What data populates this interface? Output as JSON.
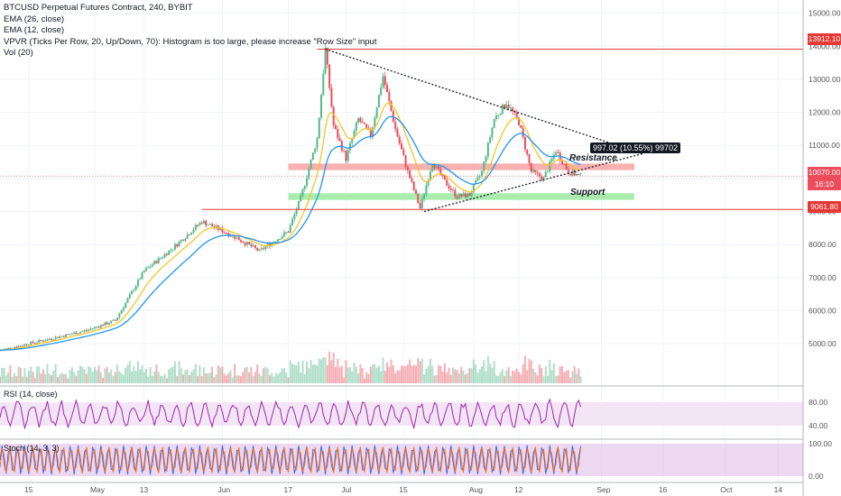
{
  "header": {
    "symbol_line": "BTCUSD Perpetual Futures Contract, 240, BYBIT",
    "ema26": "EMA (26, close)",
    "ema12": "EMA (12, close)",
    "vpvr": "VPVR (Ticks Per Row, 20, Up/Down, 70): Histogram is too large, please increase \"Row Size\" input",
    "vol": "Vol (20)"
  },
  "panes": {
    "rsi_label": "RSI (14, close)",
    "stoch_label": "Stoch (14, 3, 3)"
  },
  "price_labels": {
    "top_line": "13912.10",
    "current": "10070.00",
    "countdown": "16:10",
    "bottom_line": "9061.80"
  },
  "annotations": {
    "resistance": "Resistance",
    "support": "Support",
    "measure": "997.02 (10.55%) 99702"
  },
  "colors": {
    "candle_up": "#53b987",
    "candle_down": "#eb4d5c",
    "ema26": "#2196f3",
    "ema12": "#f5c527",
    "red_line": "#e53935",
    "resistance_zone": "#f8b0b0",
    "support_zone": "#a9ecae",
    "rsi": "#9c27b0",
    "stoch_k": "#2962ff",
    "stoch_d": "#ff6d00"
  },
  "chart_data": {
    "type": "candlestick",
    "title": "BTCUSD Perpetual Futures Contract, 240, BYBIT",
    "y_ticks": [
      "15000.00",
      "14000.00",
      "13000.00",
      "12000.00",
      "11000.00",
      "10000.00",
      "9000.00",
      "8000.00",
      "7000.00",
      "6000.00",
      "5000.00"
    ],
    "x_ticks": [
      "15",
      "May",
      "13",
      "Jun",
      "17",
      "Jul",
      "15",
      "Aug",
      "12",
      "Sep",
      "16",
      "Oct",
      "14"
    ],
    "ylim": [
      3800,
      15400
    ],
    "price_path": [
      {
        "date": "2019-04-22",
        "close": 5200
      },
      {
        "date": "2019-04-29",
        "close": 5400
      },
      {
        "date": "2019-05-06",
        "close": 5700
      },
      {
        "date": "2019-05-13",
        "close": 7200
      },
      {
        "date": "2019-05-20",
        "close": 7900
      },
      {
        "date": "2019-05-27",
        "close": 8700
      },
      {
        "date": "2019-06-03",
        "close": 8300
      },
      {
        "date": "2019-06-10",
        "close": 7800
      },
      {
        "date": "2019-06-17",
        "close": 8400
      },
      {
        "date": "2019-06-20",
        "close": 9400
      },
      {
        "date": "2019-06-24",
        "close": 11200
      },
      {
        "date": "2019-06-26",
        "close": 13912
      },
      {
        "date": "2019-06-28",
        "close": 11600
      },
      {
        "date": "2019-07-01",
        "close": 10600
      },
      {
        "date": "2019-07-04",
        "close": 11800
      },
      {
        "date": "2019-07-07",
        "close": 11300
      },
      {
        "date": "2019-07-10",
        "close": 13100
      },
      {
        "date": "2019-07-13",
        "close": 11500
      },
      {
        "date": "2019-07-16",
        "close": 10200
      },
      {
        "date": "2019-07-19",
        "close": 9100
      },
      {
        "date": "2019-07-22",
        "close": 10500
      },
      {
        "date": "2019-07-25",
        "close": 9900
      },
      {
        "date": "2019-07-28",
        "close": 9450
      },
      {
        "date": "2019-07-31",
        "close": 9500
      },
      {
        "date": "2019-08-03",
        "close": 10200
      },
      {
        "date": "2019-08-06",
        "close": 11800
      },
      {
        "date": "2019-08-09",
        "close": 12300
      },
      {
        "date": "2019-08-12",
        "close": 11700
      },
      {
        "date": "2019-08-15",
        "close": 10200
      },
      {
        "date": "2019-08-18",
        "close": 10000
      },
      {
        "date": "2019-08-21",
        "close": 10850
      },
      {
        "date": "2019-08-24",
        "close": 10200
      },
      {
        "date": "2019-08-27",
        "close": 10070
      }
    ],
    "levels": {
      "resistance_line": 13912.1,
      "support_line": 9061.8,
      "current_price": 10070.0
    },
    "rsi_ticks": [
      "80.00",
      "40.00"
    ],
    "stoch_ticks": [
      "100.00",
      "0.00"
    ]
  }
}
